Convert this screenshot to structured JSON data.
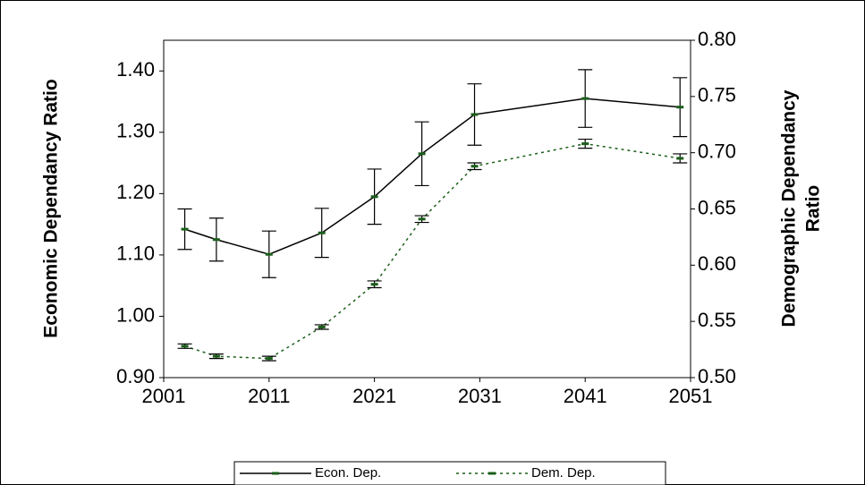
{
  "chart_data": {
    "type": "line",
    "x": [
      2003,
      2006,
      2011,
      2016,
      2021,
      2025.5,
      2030.5,
      2041,
      2050
    ],
    "series": [
      {
        "name": "Econ. Dep.",
        "color": "#000000",
        "marker_color": "#1a5e1a",
        "dash": "solid",
        "values": [
          1.142,
          1.125,
          1.101,
          1.136,
          1.195,
          1.265,
          1.329,
          1.355,
          1.341
        ],
        "errors": [
          0.033,
          0.035,
          0.038,
          0.04,
          0.045,
          0.052,
          0.05,
          0.047,
          0.048
        ]
      },
      {
        "name": "Dem. Dep.",
        "color": "#1a5e1a",
        "marker_color": "#1a5e1a",
        "dash": "dotted",
        "axis": "y2",
        "values": [
          0.528,
          0.519,
          0.517,
          0.545,
          0.583,
          0.641,
          0.688,
          0.708,
          0.695
        ],
        "errors": [
          0.002,
          0.002,
          0.002,
          0.002,
          0.003,
          0.003,
          0.003,
          0.004,
          0.004
        ]
      }
    ],
    "xlim": [
      2001,
      2051
    ],
    "xticks": [
      2001,
      2011,
      2021,
      2031,
      2041,
      2051
    ],
    "ylim": [
      0.9,
      1.45
    ],
    "yticks": [
      {
        "value": 0.9,
        "label": "0.90"
      },
      {
        "value": 1.0,
        "label": "1.00"
      },
      {
        "value": 1.1,
        "label": "1.10"
      },
      {
        "value": 1.2,
        "label": "1.20"
      },
      {
        "value": 1.3,
        "label": "1.30"
      },
      {
        "value": 1.4,
        "label": "1.40"
      }
    ],
    "y2lim": [
      0.5,
      0.8
    ],
    "y2ticks": [
      {
        "value": 0.5,
        "label": "0.50"
      },
      {
        "value": 0.55,
        "label": "0.55"
      },
      {
        "value": 0.6,
        "label": "0.60"
      },
      {
        "value": 0.65,
        "label": "0.65"
      },
      {
        "value": 0.7,
        "label": "0.70"
      },
      {
        "value": 0.75,
        "label": "0.75"
      },
      {
        "value": 0.8,
        "label": "0.80"
      }
    ],
    "ylabel": "Economic Dependancy Ratio",
    "y2label": [
      "Demographic Dependancy",
      "Ratio"
    ],
    "legend": "bottom"
  }
}
